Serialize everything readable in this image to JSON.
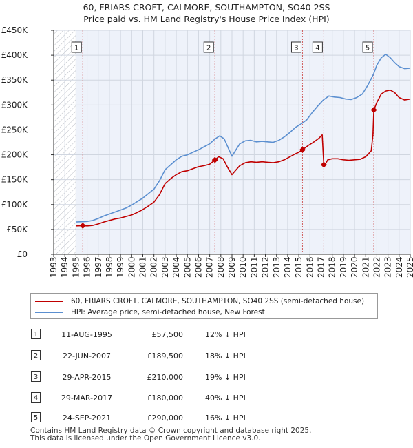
{
  "title": {
    "line1": "60, FRIARS CROFT, CALMORE, SOUTHAMPTON, SO40 2SS",
    "line2": "Price paid vs. HM Land Registry's House Price Index (HPI)"
  },
  "colors": {
    "price_paid": "#c00000",
    "hpi": "#5b8fd0",
    "shaded_bg": "#eef2fa",
    "grid": "#d0d6e0",
    "marker_line": "#d06060"
  },
  "chart_data": {
    "type": "line",
    "title": "60, FRIARS CROFT, CALMORE, SOUTHAMPTON, SO40 2SS",
    "subtitle": "Price paid vs. HM Land Registry's House Price Index (HPI)",
    "xlabel": "",
    "ylabel": "",
    "xlim": [
      1993,
      2025
    ],
    "ylim": [
      0,
      450000
    ],
    "y_ticks": [
      0,
      50000,
      100000,
      150000,
      200000,
      250000,
      300000,
      350000,
      400000,
      450000
    ],
    "y_tick_labels": [
      "£0",
      "£50K",
      "£100K",
      "£150K",
      "£200K",
      "£250K",
      "£300K",
      "£350K",
      "£400K",
      "£450K"
    ],
    "x_ticks": [
      1993,
      1994,
      1995,
      1996,
      1997,
      1998,
      1999,
      2000,
      2001,
      2002,
      2003,
      2004,
      2005,
      2006,
      2007,
      2008,
      2009,
      2010,
      2011,
      2012,
      2013,
      2014,
      2015,
      2016,
      2017,
      2018,
      2019,
      2020,
      2021,
      2022,
      2023,
      2024,
      2025
    ],
    "hatched_before": 1995.0,
    "grid": true,
    "series": [
      {
        "name": "60, FRIARS CROFT, CALMORE, SOUTHAMPTON, SO40 2SS (semi-detached house)",
        "color": "#c00000",
        "x": [
          1995.0,
          1995.61,
          1996.0,
          1996.5,
          1997.0,
          1997.5,
          1998.0,
          1998.5,
          1999.0,
          1999.5,
          2000.0,
          2000.5,
          2001.0,
          2001.5,
          2002.0,
          2002.5,
          2003.0,
          2003.5,
          2004.0,
          2004.5,
          2005.0,
          2005.5,
          2006.0,
          2006.5,
          2007.0,
          2007.47,
          2007.8,
          2008.2,
          2008.6,
          2009.0,
          2009.3,
          2009.7,
          2010.2,
          2010.7,
          2011.2,
          2011.7,
          2012.2,
          2012.7,
          2013.2,
          2013.7,
          2014.2,
          2014.7,
          2015.0,
          2015.33,
          2015.8,
          2016.3,
          2016.8,
          2017.1,
          2017.24,
          2017.3,
          2017.6,
          2018.0,
          2018.5,
          2019.0,
          2019.5,
          2020.0,
          2020.5,
          2021.0,
          2021.5,
          2021.65,
          2021.73,
          2022.0,
          2022.4,
          2022.8,
          2023.2,
          2023.6,
          2024.0,
          2024.5,
          2025.0
        ],
        "values": [
          57000,
          57500,
          57000,
          58000,
          61000,
          65000,
          68000,
          71000,
          73000,
          76000,
          79000,
          84000,
          90000,
          97000,
          105000,
          120000,
          142000,
          152000,
          160000,
          166000,
          168000,
          172000,
          176000,
          178000,
          181000,
          189500,
          196000,
          192000,
          175000,
          160000,
          168000,
          178000,
          184000,
          186000,
          185000,
          186000,
          185000,
          184000,
          186000,
          190000,
          196000,
          202000,
          205000,
          210000,
          218000,
          225000,
          233000,
          240000,
          180000,
          178000,
          190000,
          192000,
          192000,
          190000,
          189000,
          190000,
          191000,
          196000,
          208000,
          240000,
          290000,
          305000,
          322000,
          328000,
          330000,
          325000,
          315000,
          310000,
          312000
        ]
      },
      {
        "name": "HPI: Average price, semi-detached house, New Forest",
        "color": "#5b8fd0",
        "x": [
          1995.0,
          1995.5,
          1996.0,
          1996.5,
          1997.0,
          1997.5,
          1998.0,
          1998.5,
          1999.0,
          1999.5,
          2000.0,
          2000.5,
          2001.0,
          2001.5,
          2002.0,
          2002.5,
          2003.0,
          2003.5,
          2004.0,
          2004.5,
          2005.0,
          2005.5,
          2006.0,
          2006.5,
          2007.0,
          2007.5,
          2007.9,
          2008.3,
          2008.7,
          2009.0,
          2009.3,
          2009.7,
          2010.2,
          2010.7,
          2011.2,
          2011.7,
          2012.2,
          2012.7,
          2013.2,
          2013.7,
          2014.2,
          2014.7,
          2015.2,
          2015.7,
          2016.2,
          2016.7,
          2017.2,
          2017.7,
          2018.2,
          2018.7,
          2019.2,
          2019.7,
          2020.2,
          2020.7,
          2021.2,
          2021.7,
          2022.0,
          2022.4,
          2022.8,
          2023.2,
          2023.6,
          2024.0,
          2024.5,
          2025.0
        ],
        "values": [
          65000,
          65500,
          66000,
          68000,
          72000,
          77000,
          81000,
          85000,
          89000,
          93000,
          99000,
          106000,
          113000,
          122000,
          131000,
          148000,
          170000,
          180000,
          190000,
          197000,
          200000,
          205000,
          210000,
          216000,
          222000,
          232000,
          238000,
          232000,
          212000,
          197000,
          208000,
          222000,
          228000,
          229000,
          226000,
          227000,
          226000,
          225000,
          229000,
          236000,
          245000,
          255000,
          262000,
          270000,
          285000,
          298000,
          310000,
          318000,
          316000,
          315000,
          312000,
          311000,
          315000,
          322000,
          340000,
          362000,
          380000,
          395000,
          402000,
          395000,
          385000,
          377000,
          373000,
          374000
        ]
      }
    ],
    "sales": [
      {
        "label": "1",
        "x": 1995.61,
        "value": 57500,
        "date": "11-AUG-1995"
      },
      {
        "label": "2",
        "x": 2007.47,
        "value": 189500,
        "date": "22-JUN-2007"
      },
      {
        "label": "3",
        "x": 2015.33,
        "value": 210000,
        "date": "29-APR-2015"
      },
      {
        "label": "4",
        "x": 2017.24,
        "value": 180000,
        "date": "29-MAR-2017"
      },
      {
        "label": "5",
        "x": 2021.73,
        "value": 290000,
        "date": "24-SEP-2021"
      }
    ]
  },
  "legend": {
    "items": [
      {
        "label": "60, FRIARS CROFT, CALMORE, SOUTHAMPTON, SO40 2SS (semi-detached house)"
      },
      {
        "label": "HPI: Average price, semi-detached house, New Forest"
      }
    ]
  },
  "sales_table": [
    {
      "num": "1",
      "date": "11-AUG-1995",
      "price": "£57,500",
      "hpi": "12% ↓ HPI"
    },
    {
      "num": "2",
      "date": "22-JUN-2007",
      "price": "£189,500",
      "hpi": "18% ↓ HPI"
    },
    {
      "num": "3",
      "date": "29-APR-2015",
      "price": "£210,000",
      "hpi": "19% ↓ HPI"
    },
    {
      "num": "4",
      "date": "29-MAR-2017",
      "price": "£180,000",
      "hpi": "40% ↓ HPI"
    },
    {
      "num": "5",
      "date": "24-SEP-2021",
      "price": "£290,000",
      "hpi": "16% ↓ HPI"
    }
  ],
  "footer": {
    "line1": "Contains HM Land Registry data © Crown copyright and database right 2025.",
    "line2": "This data is licensed under the Open Government Licence v3.0."
  }
}
